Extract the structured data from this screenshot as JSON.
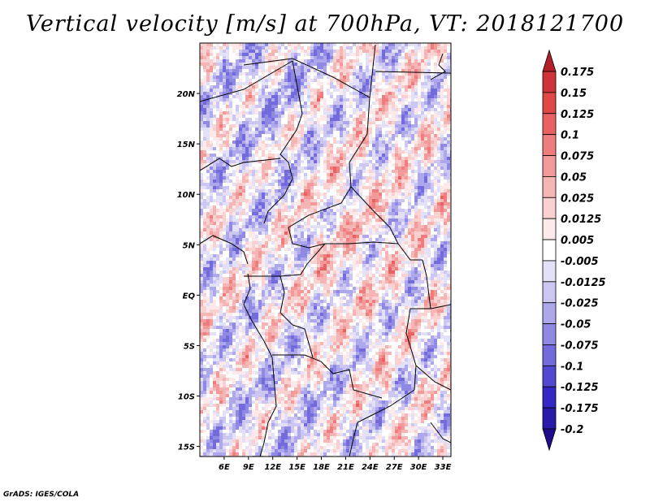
{
  "title": "Vertical velocity [m/s] at 700hPa, VT: 2018121700",
  "credit": "GrADS: IGES/COLA",
  "map": {
    "lon_range": [
      3,
      34
    ],
    "lat_range": [
      -16,
      25
    ],
    "lat_ticks": [
      {
        "lat": 20,
        "label": "20N"
      },
      {
        "lat": 15,
        "label": "15N"
      },
      {
        "lat": 10,
        "label": "10N"
      },
      {
        "lat": 5,
        "label": "5N"
      },
      {
        "lat": 0,
        "label": "EQ"
      },
      {
        "lat": -5,
        "label": "5S"
      },
      {
        "lat": -10,
        "label": "10S"
      },
      {
        "lat": -15,
        "label": "15S"
      }
    ],
    "lon_ticks": [
      {
        "lon": 6,
        "label": "6E"
      },
      {
        "lon": 9,
        "label": "9E"
      },
      {
        "lon": 12,
        "label": "12E"
      },
      {
        "lon": 15,
        "label": "15E"
      },
      {
        "lon": 18,
        "label": "18E"
      },
      {
        "lon": 21,
        "label": "21E"
      },
      {
        "lon": 24,
        "label": "24E"
      },
      {
        "lon": 27,
        "label": "27E"
      },
      {
        "lon": 30,
        "label": "30E"
      },
      {
        "lon": 33,
        "label": "33E"
      }
    ]
  },
  "colorbar": {
    "levels": [
      "0.175",
      "0.15",
      "0.125",
      "0.1",
      "0.075",
      "0.05",
      "0.025",
      "0.0125",
      "0.005",
      "-0.005",
      "-0.0125",
      "-0.025",
      "-0.05",
      "-0.075",
      "-0.1",
      "-0.125",
      "-0.175",
      "-0.2"
    ],
    "colors": [
      "#b4202a",
      "#cf3338",
      "#e04848",
      "#ea6161",
      "#ef7d7d",
      "#f29a9a",
      "#f6b5b5",
      "#fad1d1",
      "#fde9e9",
      "#ffffff",
      "#e3e1f7",
      "#cbc7f2",
      "#ada7ec",
      "#8f89e3",
      "#736bdb",
      "#5149cf",
      "#3527c3",
      "#2a1aa9",
      "#1f0c8c"
    ]
  }
}
